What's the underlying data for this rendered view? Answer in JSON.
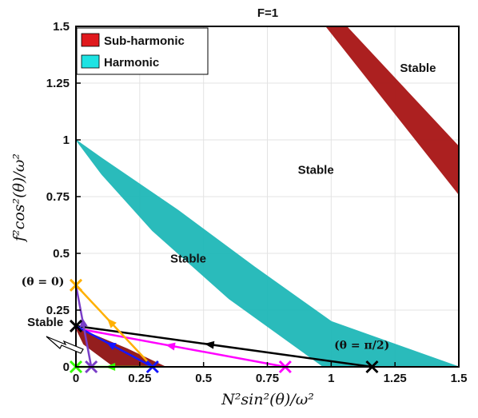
{
  "chart_data": {
    "type": "line",
    "title": "F=1",
    "xlabel": "N²sin²(θ)/ω²",
    "ylabel": "f²cos²(θ)/ω²",
    "xlim": [
      0,
      1.5
    ],
    "ylim": [
      0,
      1.5
    ],
    "x_ticks": [
      "0",
      "0.25",
      "0.5",
      "0.75",
      "1",
      "1.25",
      "1.5"
    ],
    "y_ticks": [
      "0",
      "0.25",
      "0.5",
      "0.75",
      "1",
      "1.25",
      "1.5"
    ],
    "grid": true,
    "legend": {
      "placement": "top-left",
      "entries": [
        {
          "label": "Sub-harmonic",
          "color": "#e0191d"
        },
        {
          "label": "Harmonic",
          "color": "#1ee3e3"
        }
      ]
    },
    "regions": [
      {
        "type": "sub-harmonic",
        "color": "#a81515",
        "polygon": [
          [
            0.98,
            1.5
          ],
          [
            1.06,
            1.5
          ],
          [
            1.5,
            0.97
          ],
          [
            1.5,
            0.76
          ]
        ]
      },
      {
        "type": "harmonic",
        "color": "#1fb8b8",
        "polygon": [
          [
            0,
            1.0
          ],
          [
            0.1,
            0.92
          ],
          [
            0.4,
            0.69
          ],
          [
            0.7,
            0.44
          ],
          [
            1.0,
            0.2
          ],
          [
            1.35,
            0.06
          ],
          [
            1.5,
            0.0
          ],
          [
            0.97,
            0.0
          ],
          [
            0.6,
            0.3
          ],
          [
            0.3,
            0.6
          ],
          [
            0.1,
            0.85
          ]
        ]
      },
      {
        "type": "sub-harmonic",
        "color": "#8f1212",
        "polygon": [
          [
            0,
            0.17
          ],
          [
            0.05,
            0.15
          ],
          [
            0.2,
            0.08
          ],
          [
            0.35,
            0.0
          ],
          [
            0.15,
            0.0
          ],
          [
            0.03,
            0.1
          ]
        ]
      }
    ],
    "region_labels": [
      {
        "text": "Stable",
        "x": 1.34,
        "y": 1.3
      },
      {
        "text": "Stable",
        "x": 0.94,
        "y": 0.85
      },
      {
        "text": "Stable",
        "x": 0.44,
        "y": 0.46
      },
      {
        "text": "Stable",
        "x": -0.12,
        "y": 0.18
      }
    ],
    "annotations": [
      {
        "text": "(θ = 0)",
        "x": -0.13,
        "y": 0.36
      },
      {
        "text": "(θ = π/2)",
        "x": 1.12,
        "y": 0.08
      }
    ],
    "series": [
      {
        "color": "#000000",
        "x": [
          0,
          1.16
        ],
        "y": [
          0.18,
          0.0
        ]
      },
      {
        "color": "#ff00ff",
        "x": [
          0,
          0.82
        ],
        "y": [
          0.17,
          0.0
        ]
      },
      {
        "color": "#ffb000",
        "x": [
          0,
          0.3
        ],
        "y": [
          0.36,
          0.0
        ]
      },
      {
        "color": "#1515ff",
        "x": [
          0,
          0.3
        ],
        "y": [
          0.18,
          0.0
        ]
      },
      {
        "color": "#7a3ec8",
        "x": [
          0,
          0.06
        ],
        "y": [
          0.36,
          0.0
        ]
      },
      {
        "color": "#33ff00",
        "x": [
          0,
          0.3
        ],
        "y": [
          0.0,
          0.0
        ]
      }
    ],
    "endpoint_markers": [
      {
        "color": "#ffb000",
        "x": 0,
        "y": 0.36
      },
      {
        "color": "#000000",
        "x": 0,
        "y": 0.18
      },
      {
        "color": "#000000",
        "x": 1.16,
        "y": 0.0
      },
      {
        "color": "#ff00ff",
        "x": 0.82,
        "y": 0.0
      },
      {
        "color": "#1515ff",
        "x": 0.3,
        "y": 0.0
      },
      {
        "color": "#7a3ec8",
        "x": 0.06,
        "y": 0.0
      },
      {
        "color": "#33ff00",
        "x": 0.0,
        "y": 0.0
      }
    ]
  }
}
